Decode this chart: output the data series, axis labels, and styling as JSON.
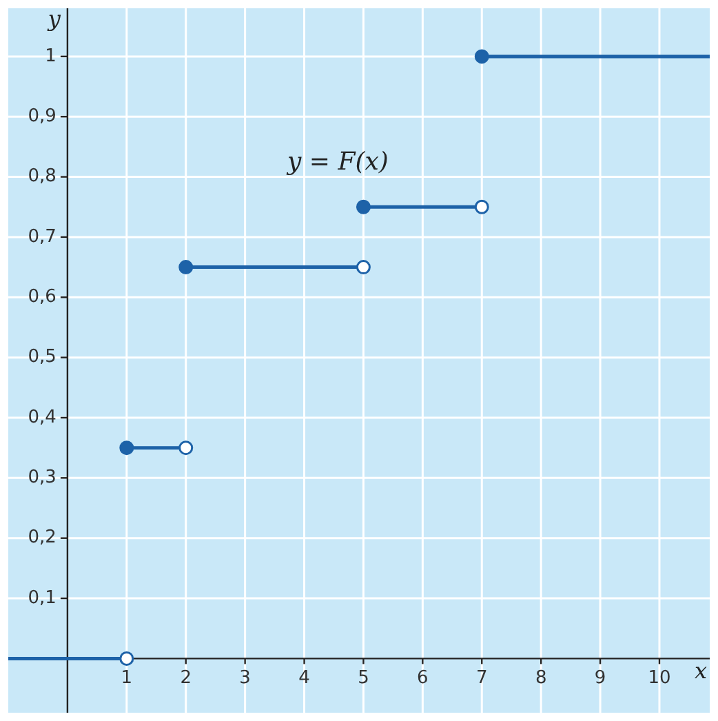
{
  "chart_data": {
    "type": "line",
    "xlabel": "x",
    "ylabel": "y",
    "xlim": [
      -1,
      10.85
    ],
    "ylim": [
      -0.09,
      1.08
    ],
    "xticks": [
      1,
      2,
      3,
      4,
      5,
      6,
      7,
      8,
      9,
      10
    ],
    "yticks": [
      {
        "value": 0.1,
        "label": "0,1"
      },
      {
        "value": 0.2,
        "label": "0,2"
      },
      {
        "value": 0.3,
        "label": "0,3"
      },
      {
        "value": 0.4,
        "label": "0,4"
      },
      {
        "value": 0.5,
        "label": "0,5"
      },
      {
        "value": 0.6,
        "label": "0,6"
      },
      {
        "value": 0.7,
        "label": "0,7"
      },
      {
        "value": 0.8,
        "label": "0,8"
      },
      {
        "value": 0.9,
        "label": "0,9"
      },
      {
        "value": 1,
        "label": "1"
      }
    ],
    "grid": true,
    "legend": false,
    "marker": "none",
    "line_style": "solid",
    "annotations": [
      "y = F(x)"
    ],
    "series": [
      {
        "color": "#1d62a8",
        "x": [
          -1,
          1
        ],
        "values": [
          0,
          0
        ]
      },
      {
        "color": "#1d62a8",
        "x": [
          1,
          2
        ],
        "values": [
          0.35,
          0.35
        ]
      },
      {
        "color": "#1d62a8",
        "x": [
          2,
          5
        ],
        "values": [
          0.65,
          0.65
        ]
      },
      {
        "color": "#1d62a8",
        "x": [
          5,
          7
        ],
        "values": [
          0.75,
          0.75
        ]
      },
      {
        "color": "#1d62a8",
        "x": [
          7,
          10.85
        ],
        "values": [
          1,
          1
        ]
      },
      {
        "type": "scatter",
        "marker": "circle",
        "color": "#1d62a8",
        "x": [
          1,
          2,
          5,
          7
        ],
        "values": [
          0.35,
          0.65,
          0.75,
          1
        ]
      },
      {
        "type": "scatter",
        "marker": "circle",
        "color": "#ffffff",
        "x": [
          1,
          2,
          5,
          7
        ],
        "values": [
          0,
          0.35,
          0.65,
          0.75
        ]
      }
    ]
  }
}
